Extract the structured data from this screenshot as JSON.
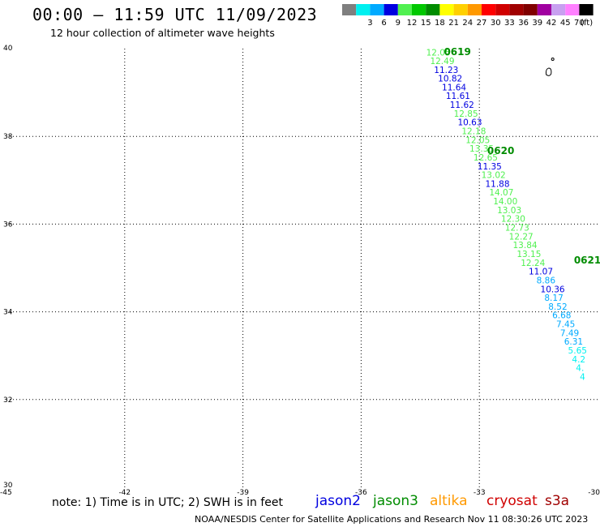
{
  "header": {
    "title": "00:00 – 11:59 UTC 11/09/2023",
    "subtitle": "12 hour collection of altimeter wave heights"
  },
  "colorbar": {
    "unit": "(ft)",
    "swatches": [
      {
        "color": "#7f7f7f",
        "label": ""
      },
      {
        "color": "#00f0f0",
        "label": "3"
      },
      {
        "color": "#00aaff",
        "label": "6"
      },
      {
        "color": "#0000e0",
        "label": "9"
      },
      {
        "color": "#50f050",
        "label": "12"
      },
      {
        "color": "#00c800",
        "label": "15"
      },
      {
        "color": "#008c00",
        "label": "18"
      },
      {
        "color": "#ffff00",
        "label": "21"
      },
      {
        "color": "#ffd000",
        "label": "24"
      },
      {
        "color": "#ff9900",
        "label": "27"
      },
      {
        "color": "#ff0000",
        "label": "30"
      },
      {
        "color": "#d00000",
        "label": "33"
      },
      {
        "color": "#a00000",
        "label": "36"
      },
      {
        "color": "#800000",
        "label": "39"
      },
      {
        "color": "#a000a0",
        "label": "42"
      },
      {
        "color": "#c8a0f0",
        "label": "45"
      },
      {
        "color": "#ff80ff",
        "label": "70"
      },
      {
        "color": "#000000",
        "label": ""
      }
    ]
  },
  "map": {
    "lon_range": [
      -45,
      -30
    ],
    "lat_range": [
      30,
      40
    ],
    "lon_ticks": [
      "-45",
      "-42",
      "-39",
      "-36",
      "-33",
      "-30"
    ],
    "lat_ticks": [
      "30",
      "32",
      "34",
      "36",
      "38",
      "40"
    ],
    "time_labels": [
      {
        "text": "0619",
        "lon": -33.9,
        "lat": 39.85
      },
      {
        "text": "0620",
        "lon": -32.8,
        "lat": 37.6
      },
      {
        "text": "0621",
        "lon": -30.6,
        "lat": 35.1
      }
    ],
    "island": {
      "name": "island-outline",
      "lon": -31.2,
      "lat": 39.5
    },
    "points": [
      {
        "v": "12.05",
        "lon": -34.35,
        "lat": 39.84,
        "c": "#50f050"
      },
      {
        "v": "12.49",
        "lon": -34.25,
        "lat": 39.65,
        "c": "#50f050"
      },
      {
        "v": "11.23",
        "lon": -34.15,
        "lat": 39.45,
        "c": "#0000e0"
      },
      {
        "v": "10.82",
        "lon": -34.05,
        "lat": 39.25,
        "c": "#0000e0"
      },
      {
        "v": "11.64",
        "lon": -33.95,
        "lat": 39.05,
        "c": "#0000e0"
      },
      {
        "v": "11.61",
        "lon": -33.85,
        "lat": 38.85,
        "c": "#0000e0"
      },
      {
        "v": "11.62",
        "lon": -33.75,
        "lat": 38.65,
        "c": "#0000e0"
      },
      {
        "v": "12.85",
        "lon": -33.65,
        "lat": 38.45,
        "c": "#50f050"
      },
      {
        "v": "10.63",
        "lon": -33.55,
        "lat": 38.25,
        "c": "#0000e0"
      },
      {
        "v": "12.18",
        "lon": -33.45,
        "lat": 38.05,
        "c": "#50f050"
      },
      {
        "v": "12.05",
        "lon": -33.35,
        "lat": 37.85,
        "c": "#50f050"
      },
      {
        "v": "13.35",
        "lon": -33.25,
        "lat": 37.65,
        "c": "#50f050"
      },
      {
        "v": "12.65",
        "lon": -33.15,
        "lat": 37.45,
        "c": "#50f050"
      },
      {
        "v": "11.35",
        "lon": -33.05,
        "lat": 37.25,
        "c": "#0000e0"
      },
      {
        "v": "13.02",
        "lon": -32.95,
        "lat": 37.05,
        "c": "#50f050"
      },
      {
        "v": "11.88",
        "lon": -32.85,
        "lat": 36.85,
        "c": "#0000e0"
      },
      {
        "v": "14.07",
        "lon": -32.75,
        "lat": 36.65,
        "c": "#50f050"
      },
      {
        "v": "14.00",
        "lon": -32.65,
        "lat": 36.45,
        "c": "#50f050"
      },
      {
        "v": "13.03",
        "lon": -32.55,
        "lat": 36.25,
        "c": "#50f050"
      },
      {
        "v": "12.30",
        "lon": -32.45,
        "lat": 36.05,
        "c": "#50f050"
      },
      {
        "v": "12.73",
        "lon": -32.35,
        "lat": 35.85,
        "c": "#50f050"
      },
      {
        "v": "12.27",
        "lon": -32.25,
        "lat": 35.65,
        "c": "#50f050"
      },
      {
        "v": "13.84",
        "lon": -32.15,
        "lat": 35.45,
        "c": "#50f050"
      },
      {
        "v": "13.15",
        "lon": -32.05,
        "lat": 35.25,
        "c": "#50f050"
      },
      {
        "v": "12.24",
        "lon": -31.95,
        "lat": 35.05,
        "c": "#50f050"
      },
      {
        "v": "11.07",
        "lon": -31.75,
        "lat": 34.85,
        "c": "#0000e0"
      },
      {
        "v": "8.86",
        "lon": -31.55,
        "lat": 34.65,
        "c": "#00aaff"
      },
      {
        "v": "10.36",
        "lon": -31.45,
        "lat": 34.45,
        "c": "#0000e0"
      },
      {
        "v": "8.17",
        "lon": -31.35,
        "lat": 34.25,
        "c": "#00aaff"
      },
      {
        "v": "8.52",
        "lon": -31.25,
        "lat": 34.05,
        "c": "#00aaff"
      },
      {
        "v": "6.68",
        "lon": -31.15,
        "lat": 33.85,
        "c": "#00aaff"
      },
      {
        "v": "7.45",
        "lon": -31.05,
        "lat": 33.65,
        "c": "#00aaff"
      },
      {
        "v": "7.49",
        "lon": -30.95,
        "lat": 33.45,
        "c": "#00aaff"
      },
      {
        "v": "6.31",
        "lon": -30.85,
        "lat": 33.25,
        "c": "#00aaff"
      },
      {
        "v": "5.65",
        "lon": -30.75,
        "lat": 33.05,
        "c": "#00f0f0"
      },
      {
        "v": "4.2",
        "lon": -30.65,
        "lat": 32.85,
        "c": "#00f0f0"
      },
      {
        "v": "4.",
        "lon": -30.55,
        "lat": 32.65,
        "c": "#00f0f0"
      },
      {
        "v": "4",
        "lon": -30.45,
        "lat": 32.45,
        "c": "#00f0f0"
      }
    ]
  },
  "footer": {
    "note": "note:  1) Time is in UTC;  2) SWH is in feet",
    "satellites": [
      {
        "name": "jason2",
        "color": "#0000e0"
      },
      {
        "name": "jason3",
        "color": "#008c00"
      },
      {
        "name": "altika",
        "color": "#ff9900"
      },
      {
        "name": "cryosat",
        "color": "#d00000"
      },
      {
        "name": "s3a",
        "color": "#a00000"
      }
    ],
    "credit": "NOAA/NESDIS Center for Satellite Applications and Research     Nov 11 08:30:26 UTC 2023"
  }
}
